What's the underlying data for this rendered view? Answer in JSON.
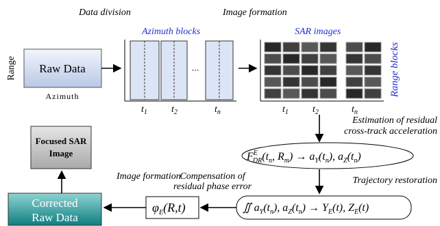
{
  "labels": {
    "data_division": "Data division",
    "image_formation_top": "Image formation",
    "azimuth_blocks": "Azimuth blocks",
    "sar_images": "SAR images",
    "range": "Range",
    "raw_data": "Raw Data",
    "azimuth": "Azimuth",
    "ellipsis": "⋯",
    "range_blocks": "Range blocks",
    "estimation": [
      "Estimation of residual",
      "cross-track acceleration"
    ],
    "trajectory": "Trajectory restoration",
    "compensation": [
      "Compensation of",
      "residual phase error"
    ],
    "image_formation_left": "Image formation",
    "focused": [
      "Focused SAR",
      "Image"
    ],
    "corrected": [
      "Corrected",
      "Raw Data"
    ]
  },
  "time_labels_left": [
    {
      "t": "t",
      "s": "1"
    },
    {
      "t": "t",
      "s": "2"
    },
    {
      "t": "t",
      "s": "n"
    }
  ],
  "time_labels_right": [
    {
      "t": "t",
      "s": "1"
    },
    {
      "t": "t",
      "s": "2"
    },
    {
      "t": "t",
      "s": "n"
    }
  ],
  "formula1": [
    "F",
    "E",
    "DR",
    "(t",
    "n",
    ", R",
    "m",
    ") → a",
    "Y",
    "(t",
    "n",
    "), a",
    "Z",
    "(t",
    "n",
    ")"
  ],
  "formula2": [
    "∬ a",
    "Y",
    "(t",
    "n",
    "), a",
    "Z",
    "(t",
    "n",
    ") → Y",
    "E",
    "(t), Z",
    "E",
    "(t)"
  ],
  "formula3": [
    "φ",
    "E",
    "(R,t)"
  ]
}
